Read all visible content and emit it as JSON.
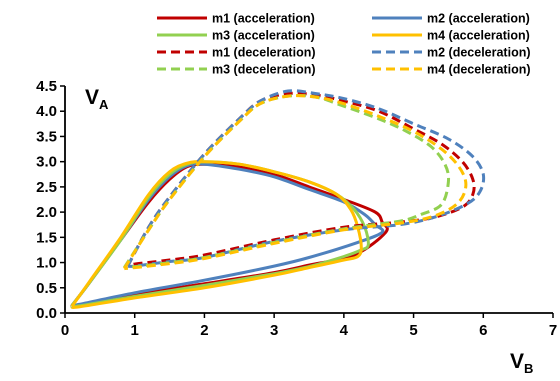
{
  "chart_data": {
    "type": "line",
    "title": "",
    "xlabel": "V",
    "xlabel_sub": "B",
    "ylabel": "V",
    "ylabel_sub": "A",
    "xlim": [
      0,
      7
    ],
    "ylim": [
      0,
      4.5
    ],
    "xticks": [
      "0",
      "1",
      "2",
      "3",
      "4",
      "5",
      "6",
      "7"
    ],
    "yticks": [
      "0.0",
      "0.5",
      "1.0",
      "1.5",
      "2.0",
      "2.5",
      "3.0",
      "3.5",
      "4.0",
      "4.5"
    ],
    "grid": false,
    "legend_position": "top",
    "series": [
      {
        "name": "m1 (acceleration)",
        "color": "#C00000",
        "dash": "solid",
        "points": [
          [
            0.1,
            0.15
          ],
          [
            0.35,
            0.6
          ],
          [
            0.8,
            1.45
          ],
          [
            1.2,
            2.2
          ],
          [
            1.5,
            2.65
          ],
          [
            1.75,
            2.9
          ],
          [
            2.0,
            2.95
          ],
          [
            2.5,
            2.9
          ],
          [
            3.0,
            2.75
          ],
          [
            3.5,
            2.5
          ],
          [
            4.0,
            2.25
          ],
          [
            4.45,
            2.0
          ],
          [
            4.55,
            1.8
          ],
          [
            4.6,
            1.6
          ],
          [
            4.15,
            1.15
          ],
          [
            3.5,
            0.95
          ],
          [
            3.0,
            0.8
          ],
          [
            2.0,
            0.58
          ],
          [
            1.0,
            0.37
          ],
          [
            0.2,
            0.16
          ],
          [
            0.1,
            0.15
          ]
        ]
      },
      {
        "name": "m2 (acceleration)",
        "color": "#4F81BD",
        "dash": "solid",
        "points": [
          [
            0.1,
            0.15
          ],
          [
            0.35,
            0.6
          ],
          [
            0.8,
            1.45
          ],
          [
            1.2,
            2.25
          ],
          [
            1.5,
            2.7
          ],
          [
            1.75,
            2.92
          ],
          [
            2.0,
            2.95
          ],
          [
            2.5,
            2.85
          ],
          [
            3.0,
            2.7
          ],
          [
            3.5,
            2.45
          ],
          [
            4.0,
            2.2
          ],
          [
            4.3,
            1.95
          ],
          [
            4.45,
            1.75
          ],
          [
            4.55,
            1.6
          ],
          [
            4.2,
            1.4
          ],
          [
            3.5,
            1.1
          ],
          [
            3.0,
            0.93
          ],
          [
            2.0,
            0.65
          ],
          [
            1.0,
            0.4
          ],
          [
            0.2,
            0.17
          ],
          [
            0.1,
            0.15
          ]
        ]
      },
      {
        "name": "m3 (acceleration)",
        "color": "#92D050",
        "dash": "solid",
        "points": [
          [
            0.1,
            0.15
          ],
          [
            0.35,
            0.6
          ],
          [
            0.8,
            1.45
          ],
          [
            1.2,
            2.3
          ],
          [
            1.5,
            2.75
          ],
          [
            1.75,
            2.95
          ],
          [
            2.0,
            3.0
          ],
          [
            2.5,
            2.95
          ],
          [
            3.0,
            2.8
          ],
          [
            3.5,
            2.6
          ],
          [
            3.9,
            2.35
          ],
          [
            4.15,
            2.05
          ],
          [
            4.3,
            1.7
          ],
          [
            4.35,
            1.35
          ],
          [
            4.25,
            1.25
          ],
          [
            4.0,
            1.12
          ],
          [
            3.5,
            0.92
          ],
          [
            3.0,
            0.78
          ],
          [
            2.0,
            0.55
          ],
          [
            1.0,
            0.33
          ],
          [
            0.2,
            0.14
          ],
          [
            0.1,
            0.15
          ]
        ]
      },
      {
        "name": "m4 (acceleration)",
        "color": "#FFC000",
        "dash": "solid",
        "points": [
          [
            0.1,
            0.13
          ],
          [
            0.35,
            0.62
          ],
          [
            0.8,
            1.5
          ],
          [
            1.2,
            2.35
          ],
          [
            1.5,
            2.8
          ],
          [
            1.75,
            2.97
          ],
          [
            2.0,
            3.0
          ],
          [
            2.5,
            2.95
          ],
          [
            3.0,
            2.8
          ],
          [
            3.5,
            2.6
          ],
          [
            3.9,
            2.35
          ],
          [
            4.1,
            2.05
          ],
          [
            4.2,
            1.7
          ],
          [
            4.25,
            1.3
          ],
          [
            4.2,
            1.12
          ],
          [
            4.0,
            1.05
          ],
          [
            3.5,
            0.9
          ],
          [
            3.0,
            0.75
          ],
          [
            2.0,
            0.5
          ],
          [
            1.0,
            0.3
          ],
          [
            0.2,
            0.12
          ],
          [
            0.1,
            0.13
          ]
        ]
      },
      {
        "name": "m1 (deceleration)",
        "color": "#C00000",
        "dash": "dashed",
        "points": [
          [
            0.9,
            0.93
          ],
          [
            1.2,
            1.7
          ],
          [
            1.5,
            2.3
          ],
          [
            2.0,
            3.15
          ],
          [
            2.5,
            3.85
          ],
          [
            2.8,
            4.2
          ],
          [
            3.2,
            4.35
          ],
          [
            3.6,
            4.32
          ],
          [
            4.0,
            4.2
          ],
          [
            4.5,
            4.0
          ],
          [
            5.0,
            3.65
          ],
          [
            5.4,
            3.35
          ],
          [
            5.7,
            3.0
          ],
          [
            5.85,
            2.65
          ],
          [
            5.85,
            2.35
          ],
          [
            5.7,
            2.1
          ],
          [
            5.3,
            1.9
          ],
          [
            4.8,
            1.8
          ],
          [
            4.0,
            1.7
          ],
          [
            3.0,
            1.45
          ],
          [
            2.0,
            1.15
          ],
          [
            1.5,
            1.05
          ],
          [
            1.0,
            0.97
          ],
          [
            0.9,
            0.93
          ]
        ]
      },
      {
        "name": "m2 (deceleration)",
        "color": "#4F81BD",
        "dash": "dashed",
        "points": [
          [
            0.9,
            0.93
          ],
          [
            1.2,
            1.7
          ],
          [
            1.5,
            2.3
          ],
          [
            2.0,
            3.15
          ],
          [
            2.5,
            3.85
          ],
          [
            2.8,
            4.2
          ],
          [
            3.2,
            4.4
          ],
          [
            3.6,
            4.35
          ],
          [
            4.0,
            4.25
          ],
          [
            4.5,
            4.05
          ],
          [
            5.0,
            3.75
          ],
          [
            5.5,
            3.45
          ],
          [
            5.85,
            3.1
          ],
          [
            6.0,
            2.75
          ],
          [
            5.95,
            2.4
          ],
          [
            5.75,
            2.15
          ],
          [
            5.3,
            1.9
          ],
          [
            4.8,
            1.75
          ],
          [
            4.0,
            1.65
          ],
          [
            3.0,
            1.42
          ],
          [
            2.0,
            1.1
          ],
          [
            1.5,
            1.02
          ],
          [
            1.0,
            0.93
          ],
          [
            0.9,
            0.93
          ]
        ]
      },
      {
        "name": "m3 (deceleration)",
        "color": "#92D050",
        "dash": "dashed",
        "points": [
          [
            0.85,
            0.9
          ],
          [
            1.2,
            1.65
          ],
          [
            1.5,
            2.25
          ],
          [
            2.0,
            3.1
          ],
          [
            2.5,
            3.8
          ],
          [
            2.8,
            4.15
          ],
          [
            3.2,
            4.3
          ],
          [
            3.6,
            4.28
          ],
          [
            4.0,
            4.1
          ],
          [
            4.5,
            3.85
          ],
          [
            4.9,
            3.6
          ],
          [
            5.25,
            3.3
          ],
          [
            5.45,
            2.95
          ],
          [
            5.5,
            2.6
          ],
          [
            5.4,
            2.15
          ],
          [
            5.1,
            1.95
          ],
          [
            4.8,
            1.82
          ],
          [
            4.0,
            1.67
          ],
          [
            3.0,
            1.4
          ],
          [
            2.0,
            1.1
          ],
          [
            1.5,
            1.0
          ],
          [
            1.0,
            0.92
          ],
          [
            0.85,
            0.9
          ]
        ]
      },
      {
        "name": "m4 (deceleration)",
        "color": "#FFC000",
        "dash": "dashed",
        "points": [
          [
            0.85,
            0.88
          ],
          [
            1.2,
            1.65
          ],
          [
            1.5,
            2.25
          ],
          [
            2.0,
            3.1
          ],
          [
            2.5,
            3.8
          ],
          [
            2.8,
            4.15
          ],
          [
            3.2,
            4.3
          ],
          [
            3.6,
            4.28
          ],
          [
            4.0,
            4.15
          ],
          [
            4.5,
            3.9
          ],
          [
            5.0,
            3.6
          ],
          [
            5.4,
            3.25
          ],
          [
            5.65,
            2.9
          ],
          [
            5.75,
            2.55
          ],
          [
            5.65,
            2.2
          ],
          [
            5.35,
            1.95
          ],
          [
            4.9,
            1.8
          ],
          [
            4.0,
            1.65
          ],
          [
            3.0,
            1.38
          ],
          [
            2.0,
            1.08
          ],
          [
            1.5,
            0.98
          ],
          [
            1.0,
            0.9
          ],
          [
            0.85,
            0.88
          ]
        ]
      }
    ]
  }
}
